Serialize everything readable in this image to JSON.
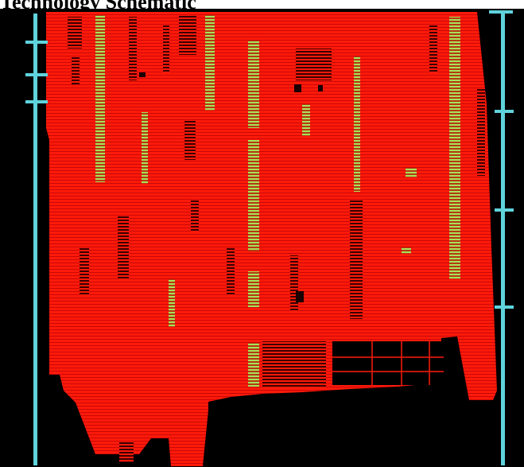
{
  "caption": "Technology Schematic",
  "colors": {
    "background": "#000000",
    "metal_fill": "#ff1a0a",
    "via_green": "#a9e15a",
    "power_rail": "#5fd3dc",
    "dark_feature": "#1a0000"
  }
}
